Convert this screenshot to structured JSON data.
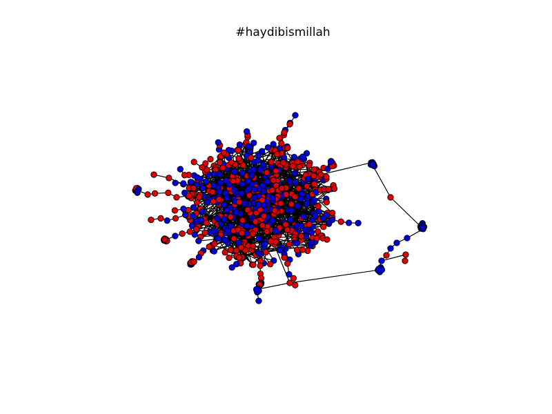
{
  "figure": {
    "title": "#haydibismillah",
    "background": "#ffffff",
    "edge_color": "#000000",
    "node_outline_color": "#000000",
    "node_classes": [
      {
        "id": "red",
        "color": "#e00000"
      },
      {
        "id": "blue",
        "color": "#0000d8"
      }
    ]
  }
}
